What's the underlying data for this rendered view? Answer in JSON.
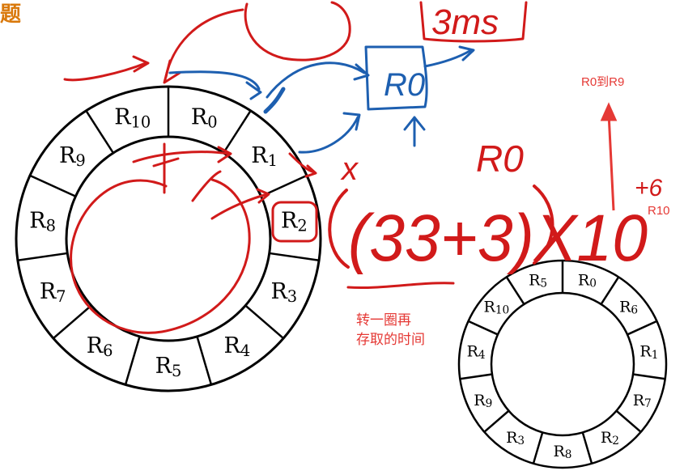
{
  "header": {
    "char": "题"
  },
  "big_disk": {
    "sectors": [
      "R10",
      "R0",
      "R1",
      "R2",
      "R3",
      "R4",
      "R5",
      "R6",
      "R7",
      "R8",
      "R9"
    ]
  },
  "small_disk": {
    "sectors": [
      "R5",
      "R0",
      "R6",
      "R1",
      "R7",
      "R2",
      "R8",
      "R3",
      "R9",
      "R4",
      "R10"
    ]
  },
  "handwriting": {
    "time_box": "3ms",
    "register_box": "R0",
    "multiply_x": "x",
    "r0_label": "R0",
    "formula": "(33+3)X10",
    "superscript": "+6"
  },
  "annotations": {
    "r0_to_r9": "R0到R9",
    "r10": "R10",
    "note_line1": "转一圈再",
    "note_line2": "存取的时间"
  },
  "colors": {
    "ink_red": "#d11a1a",
    "ink_blue": "#1d5fb0",
    "annotation_red": "#e53935",
    "header_orange": "#d9780a",
    "line_black": "#000000"
  }
}
